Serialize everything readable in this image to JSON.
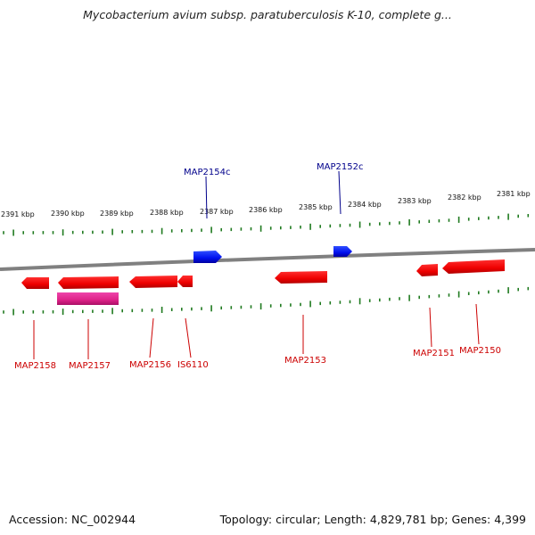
{
  "title": "Mycobacterium avium subsp. paratuberculosis K-10, complete g...",
  "footer": {
    "accession": "Accession: NC_002944",
    "summary": "Topology: circular; Length: 4,829,781 bp; Genes: 4,399"
  },
  "colors": {
    "backbone": "#808080",
    "ticks": "#1f7a1f",
    "reverse_gene": "#0000dd",
    "forward_gene": "#ee0000",
    "mobile_element": "#dd2288",
    "reverse_label": "#00008b",
    "forward_label": "#cc0000"
  },
  "scale_labels": [
    "2391 kbp",
    "2390 kbp",
    "2389 kbp",
    "2388 kbp",
    "2387 kbp",
    "2386 kbp",
    "2385 kbp",
    "2384 kbp",
    "2383 kbp",
    "2382 kbp",
    "2381 kbp"
  ],
  "top_features": [
    {
      "label": "MAP2154c",
      "icon": "reverse-strand-arrow"
    },
    {
      "label": "MAP2152c",
      "icon": "reverse-strand-arrow"
    }
  ],
  "bottom_features": [
    {
      "label": "MAP2158",
      "icon": "forward-strand-arrow"
    },
    {
      "label": "MAP2157",
      "icon": "forward-strand-arrow"
    },
    {
      "label": "MAP2156",
      "icon": "forward-strand-arrow"
    },
    {
      "label": "IS6110",
      "icon": "forward-strand-arrow"
    },
    {
      "label": "MAP2153",
      "icon": "forward-strand-arrow"
    },
    {
      "label": "MAP2151",
      "icon": "forward-strand-arrow"
    },
    {
      "label": "MAP2150",
      "icon": "forward-strand-arrow"
    }
  ],
  "mobile_feature": {
    "icon": "mobile-element-bar"
  }
}
